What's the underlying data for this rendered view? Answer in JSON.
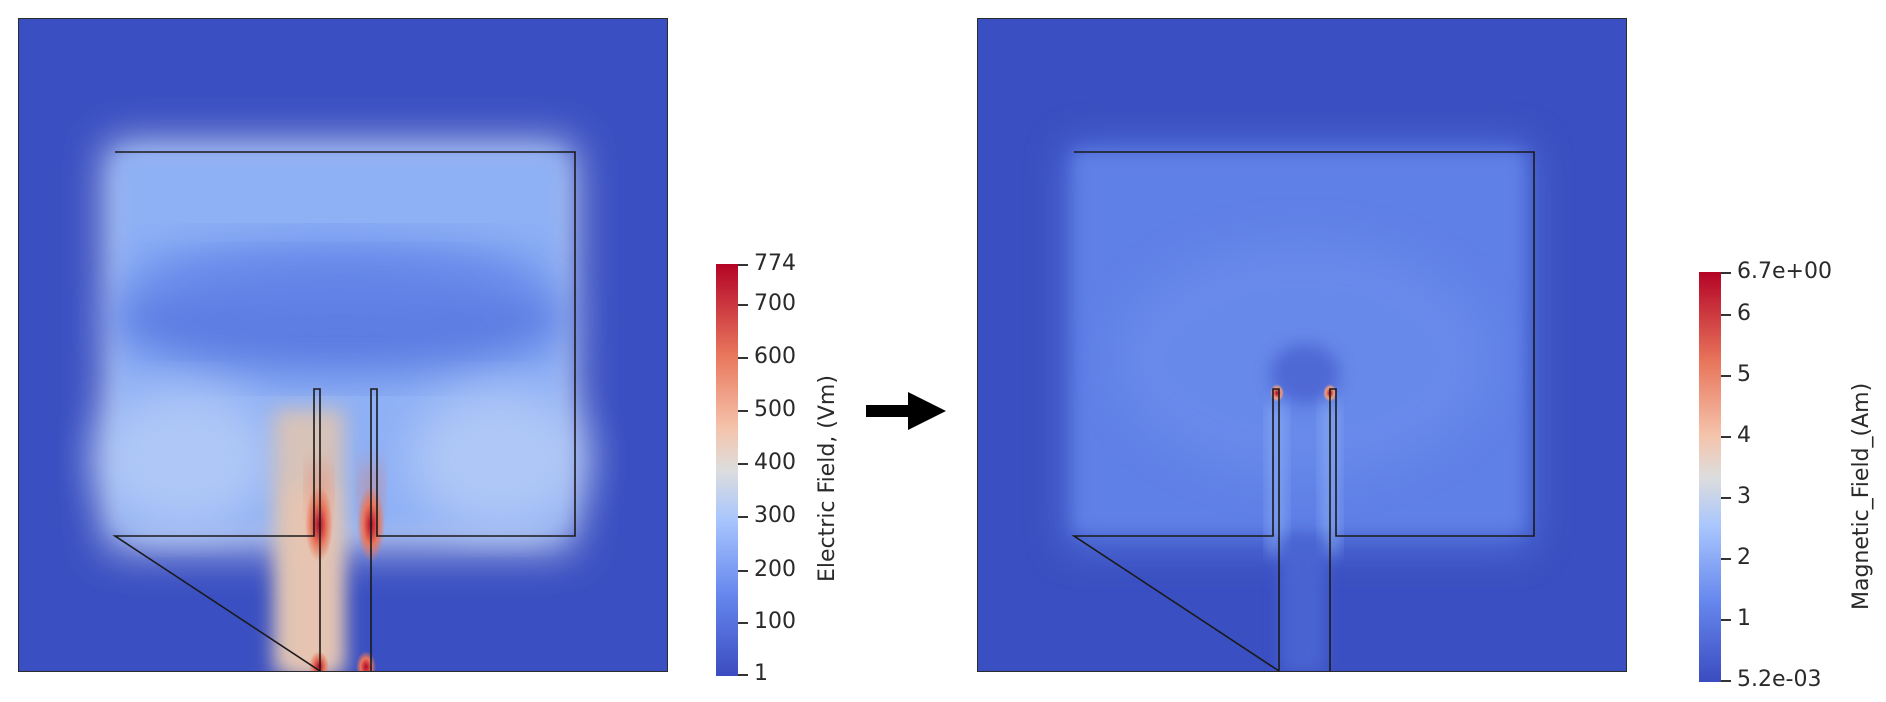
{
  "panels": {
    "electric": {
      "colorbar": {
        "title": "Electric Field, (Vm)",
        "ticks": [
          "774",
          "700",
          "600",
          "500",
          "400",
          "300",
          "200",
          "100",
          "1"
        ]
      }
    },
    "magnetic": {
      "colorbar": {
        "title": "Magnetic_Field_(Am)",
        "ticks": [
          "6.7e+00",
          "6",
          "5",
          "4",
          "3",
          "2",
          "1",
          "5.2e-03"
        ]
      }
    }
  },
  "colors": {
    "low": "#3b4cc0",
    "mid": "#dddddd",
    "high": "#b40426",
    "outline": "#1a1a1a"
  },
  "icons": {
    "arrow": "arrow-right-icon"
  }
}
